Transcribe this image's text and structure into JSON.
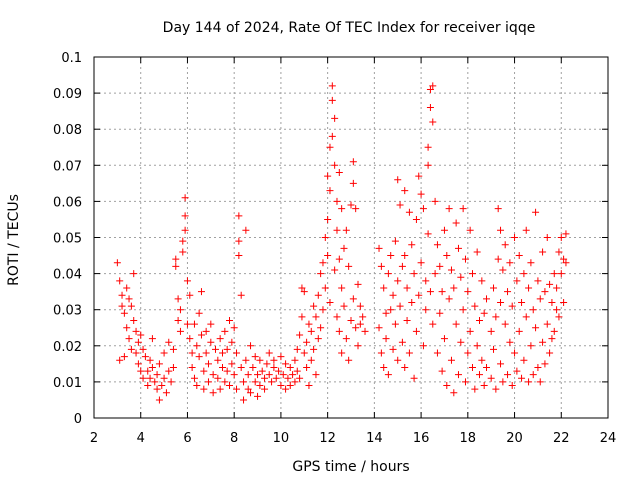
{
  "chart_data": {
    "type": "scatter",
    "title": "Day 144 of 2024, Rate Of TEC Index for receiver iqqe",
    "xlabel": "GPS time / hours",
    "ylabel": "ROTI / TECUs",
    "xlim": [
      2,
      24
    ],
    "ylim": [
      0,
      0.1
    ],
    "xticks": [
      "2",
      "4",
      "6",
      "8",
      "10",
      "12",
      "14",
      "16",
      "18",
      "20",
      "22",
      "24"
    ],
    "yticks": [
      "0",
      "0.01",
      "0.02",
      "0.03",
      "0.04",
      "0.05",
      "0.06",
      "0.07",
      "0.08",
      "0.09",
      "0.1"
    ],
    "grid": true,
    "marker": "plus",
    "series_color": "#ff0000",
    "points": [
      [
        3.0,
        0.043
      ],
      [
        3.1,
        0.038
      ],
      [
        3.1,
        0.016
      ],
      [
        3.2,
        0.034
      ],
      [
        3.2,
        0.031
      ],
      [
        3.3,
        0.029
      ],
      [
        3.3,
        0.017
      ],
      [
        3.4,
        0.036
      ],
      [
        3.4,
        0.025
      ],
      [
        3.5,
        0.033
      ],
      [
        3.5,
        0.022
      ],
      [
        3.6,
        0.031
      ],
      [
        3.6,
        0.019
      ],
      [
        3.7,
        0.04
      ],
      [
        3.7,
        0.027
      ],
      [
        3.8,
        0.024
      ],
      [
        3.8,
        0.018
      ],
      [
        3.9,
        0.021
      ],
      [
        3.9,
        0.015
      ],
      [
        4.0,
        0.023
      ],
      [
        4.0,
        0.013
      ],
      [
        4.1,
        0.019
      ],
      [
        4.1,
        0.011
      ],
      [
        4.2,
        0.017
      ],
      [
        4.3,
        0.013
      ],
      [
        4.3,
        0.009
      ],
      [
        4.4,
        0.016
      ],
      [
        4.4,
        0.011
      ],
      [
        4.5,
        0.022
      ],
      [
        4.5,
        0.014
      ],
      [
        4.6,
        0.01
      ],
      [
        4.7,
        0.012
      ],
      [
        4.7,
        0.008
      ],
      [
        4.8,
        0.005
      ],
      [
        4.8,
        0.015
      ],
      [
        4.9,
        0.009
      ],
      [
        5.0,
        0.011
      ],
      [
        5.0,
        0.018
      ],
      [
        5.1,
        0.007
      ],
      [
        5.2,
        0.013
      ],
      [
        5.2,
        0.021
      ],
      [
        5.3,
        0.01
      ],
      [
        5.4,
        0.014
      ],
      [
        5.4,
        0.019
      ],
      [
        5.5,
        0.044
      ],
      [
        5.5,
        0.042
      ],
      [
        5.6,
        0.033
      ],
      [
        5.6,
        0.027
      ],
      [
        5.7,
        0.024
      ],
      [
        5.7,
        0.03
      ],
      [
        5.8,
        0.046
      ],
      [
        5.8,
        0.049
      ],
      [
        5.9,
        0.056
      ],
      [
        5.9,
        0.061
      ],
      [
        5.9,
        0.052
      ],
      [
        6.0,
        0.038
      ],
      [
        6.0,
        0.026
      ],
      [
        6.1,
        0.034
      ],
      [
        6.1,
        0.022
      ],
      [
        6.2,
        0.018
      ],
      [
        6.2,
        0.014
      ],
      [
        6.3,
        0.011
      ],
      [
        6.3,
        0.026
      ],
      [
        6.4,
        0.02
      ],
      [
        6.4,
        0.009
      ],
      [
        6.5,
        0.029
      ],
      [
        6.5,
        0.017
      ],
      [
        6.6,
        0.035
      ],
      [
        6.6,
        0.023
      ],
      [
        6.7,
        0.013
      ],
      [
        6.7,
        0.008
      ],
      [
        6.8,
        0.024
      ],
      [
        6.8,
        0.018
      ],
      [
        6.9,
        0.015
      ],
      [
        6.9,
        0.01
      ],
      [
        7.0,
        0.021
      ],
      [
        7.0,
        0.026
      ],
      [
        7.1,
        0.012
      ],
      [
        7.1,
        0.007
      ],
      [
        7.2,
        0.019
      ],
      [
        7.3,
        0.016
      ],
      [
        7.3,
        0.011
      ],
      [
        7.4,
        0.022
      ],
      [
        7.4,
        0.008
      ],
      [
        7.5,
        0.014
      ],
      [
        7.5,
        0.018
      ],
      [
        7.6,
        0.01
      ],
      [
        7.6,
        0.024
      ],
      [
        7.7,
        0.013
      ],
      [
        7.7,
        0.019
      ],
      [
        7.8,
        0.009
      ],
      [
        7.8,
        0.027
      ],
      [
        7.9,
        0.015
      ],
      [
        7.9,
        0.021
      ],
      [
        8.0,
        0.012
      ],
      [
        8.0,
        0.025
      ],
      [
        8.1,
        0.018
      ],
      [
        8.1,
        0.008
      ],
      [
        8.2,
        0.056
      ],
      [
        8.2,
        0.049
      ],
      [
        8.2,
        0.045
      ],
      [
        8.3,
        0.034
      ],
      [
        8.3,
        0.014
      ],
      [
        8.4,
        0.005
      ],
      [
        8.4,
        0.01
      ],
      [
        8.5,
        0.052
      ],
      [
        8.5,
        0.016
      ],
      [
        8.6,
        0.008
      ],
      [
        8.6,
        0.012
      ],
      [
        8.7,
        0.02
      ],
      [
        8.7,
        0.007
      ],
      [
        8.8,
        0.014
      ],
      [
        8.9,
        0.01
      ],
      [
        8.9,
        0.017
      ],
      [
        9.0,
        0.006
      ],
      [
        9.0,
        0.012
      ],
      [
        9.1,
        0.009
      ],
      [
        9.1,
        0.016
      ],
      [
        9.2,
        0.013
      ],
      [
        9.3,
        0.011
      ],
      [
        9.3,
        0.008
      ],
      [
        9.4,
        0.015
      ],
      [
        9.5,
        0.012
      ],
      [
        9.5,
        0.018
      ],
      [
        9.6,
        0.01
      ],
      [
        9.7,
        0.014
      ],
      [
        9.7,
        0.016
      ],
      [
        9.8,
        0.011
      ],
      [
        9.9,
        0.013
      ],
      [
        10.0,
        0.017
      ],
      [
        10.0,
        0.009
      ],
      [
        10.1,
        0.012
      ],
      [
        10.2,
        0.015
      ],
      [
        10.2,
        0.008
      ],
      [
        10.3,
        0.011
      ],
      [
        10.4,
        0.014
      ],
      [
        10.4,
        0.009
      ],
      [
        10.5,
        0.012
      ],
      [
        10.6,
        0.016
      ],
      [
        10.6,
        0.01
      ],
      [
        10.7,
        0.019
      ],
      [
        10.7,
        0.013
      ],
      [
        10.8,
        0.023
      ],
      [
        10.8,
        0.011
      ],
      [
        10.9,
        0.036
      ],
      [
        10.9,
        0.028
      ],
      [
        11.0,
        0.035
      ],
      [
        11.0,
        0.018
      ],
      [
        11.1,
        0.021
      ],
      [
        11.1,
        0.014
      ],
      [
        11.2,
        0.026
      ],
      [
        11.2,
        0.009
      ],
      [
        11.3,
        0.024
      ],
      [
        11.3,
        0.016
      ],
      [
        11.4,
        0.031
      ],
      [
        11.4,
        0.019
      ],
      [
        11.5,
        0.028
      ],
      [
        11.5,
        0.012
      ],
      [
        11.6,
        0.034
      ],
      [
        11.6,
        0.022
      ],
      [
        11.7,
        0.04
      ],
      [
        11.7,
        0.025
      ],
      [
        11.8,
        0.043
      ],
      [
        11.8,
        0.03
      ],
      [
        11.9,
        0.05
      ],
      [
        11.9,
        0.036
      ],
      [
        12.0,
        0.067
      ],
      [
        12.0,
        0.055
      ],
      [
        12.0,
        0.045
      ],
      [
        12.1,
        0.075
      ],
      [
        12.1,
        0.063
      ],
      [
        12.1,
        0.032
      ],
      [
        12.2,
        0.092
      ],
      [
        12.2,
        0.088
      ],
      [
        12.2,
        0.078
      ],
      [
        12.3,
        0.083
      ],
      [
        12.3,
        0.07
      ],
      [
        12.3,
        0.041
      ],
      [
        12.4,
        0.06
      ],
      [
        12.4,
        0.052
      ],
      [
        12.4,
        0.028
      ],
      [
        12.5,
        0.068
      ],
      [
        12.5,
        0.044
      ],
      [
        12.5,
        0.024
      ],
      [
        12.6,
        0.058
      ],
      [
        12.6,
        0.036
      ],
      [
        12.6,
        0.018
      ],
      [
        12.7,
        0.047
      ],
      [
        12.7,
        0.031
      ],
      [
        12.8,
        0.052
      ],
      [
        12.8,
        0.022
      ],
      [
        12.9,
        0.042
      ],
      [
        12.9,
        0.016
      ],
      [
        13.0,
        0.059
      ],
      [
        13.0,
        0.027
      ],
      [
        13.1,
        0.071
      ],
      [
        13.1,
        0.065
      ],
      [
        13.1,
        0.033
      ],
      [
        13.2,
        0.058
      ],
      [
        13.2,
        0.025
      ],
      [
        13.3,
        0.037
      ],
      [
        13.3,
        0.02
      ],
      [
        13.4,
        0.031
      ],
      [
        13.4,
        0.026
      ],
      [
        13.5,
        0.028
      ],
      [
        13.6,
        0.024
      ],
      [
        14.2,
        0.047
      ],
      [
        14.2,
        0.025
      ],
      [
        14.3,
        0.042
      ],
      [
        14.3,
        0.018
      ],
      [
        14.4,
        0.036
      ],
      [
        14.4,
        0.014
      ],
      [
        14.5,
        0.029
      ],
      [
        14.5,
        0.022
      ],
      [
        14.6,
        0.04
      ],
      [
        14.6,
        0.012
      ],
      [
        14.7,
        0.045
      ],
      [
        14.7,
        0.03
      ],
      [
        14.8,
        0.034
      ],
      [
        14.8,
        0.019
      ],
      [
        14.9,
        0.049
      ],
      [
        14.9,
        0.026
      ],
      [
        15.0,
        0.066
      ],
      [
        15.0,
        0.038
      ],
      [
        15.0,
        0.016
      ],
      [
        15.1,
        0.059
      ],
      [
        15.1,
        0.031
      ],
      [
        15.2,
        0.042
      ],
      [
        15.2,
        0.021
      ],
      [
        15.3,
        0.063
      ],
      [
        15.3,
        0.045
      ],
      [
        15.3,
        0.014
      ],
      [
        15.4,
        0.036
      ],
      [
        15.4,
        0.027
      ],
      [
        15.5,
        0.057
      ],
      [
        15.5,
        0.018
      ],
      [
        15.6,
        0.048
      ],
      [
        15.6,
        0.032
      ],
      [
        15.7,
        0.04
      ],
      [
        15.7,
        0.011
      ],
      [
        15.8,
        0.055
      ],
      [
        15.8,
        0.024
      ],
      [
        15.9,
        0.067
      ],
      [
        15.9,
        0.034
      ],
      [
        16.0,
        0.062
      ],
      [
        16.0,
        0.043
      ],
      [
        16.1,
        0.058
      ],
      [
        16.1,
        0.02
      ],
      [
        16.2,
        0.038
      ],
      [
        16.2,
        0.03
      ],
      [
        16.3,
        0.075
      ],
      [
        16.3,
        0.07
      ],
      [
        16.3,
        0.051
      ],
      [
        16.4,
        0.091
      ],
      [
        16.4,
        0.086
      ],
      [
        16.4,
        0.035
      ],
      [
        16.5,
        0.092
      ],
      [
        16.5,
        0.082
      ],
      [
        16.5,
        0.026
      ],
      [
        16.6,
        0.06
      ],
      [
        16.6,
        0.04
      ],
      [
        16.7,
        0.048
      ],
      [
        16.7,
        0.018
      ],
      [
        16.8,
        0.042
      ],
      [
        16.8,
        0.029
      ],
      [
        16.9,
        0.035
      ],
      [
        16.9,
        0.013
      ],
      [
        17.0,
        0.052
      ],
      [
        17.0,
        0.022
      ],
      [
        17.1,
        0.045
      ],
      [
        17.1,
        0.009
      ],
      [
        17.2,
        0.058
      ],
      [
        17.2,
        0.033
      ],
      [
        17.3,
        0.041
      ],
      [
        17.3,
        0.016
      ],
      [
        17.4,
        0.036
      ],
      [
        17.4,
        0.007
      ],
      [
        17.5,
        0.054
      ],
      [
        17.5,
        0.026
      ],
      [
        17.6,
        0.047
      ],
      [
        17.6,
        0.012
      ],
      [
        17.7,
        0.039
      ],
      [
        17.7,
        0.021
      ],
      [
        17.8,
        0.058
      ],
      [
        17.8,
        0.03
      ],
      [
        17.9,
        0.044
      ],
      [
        17.9,
        0.01
      ],
      [
        18.0,
        0.035
      ],
      [
        18.0,
        0.018
      ],
      [
        18.1,
        0.052
      ],
      [
        18.1,
        0.024
      ],
      [
        18.2,
        0.04
      ],
      [
        18.2,
        0.014
      ],
      [
        18.3,
        0.031
      ],
      [
        18.3,
        0.008
      ],
      [
        18.4,
        0.046
      ],
      [
        18.4,
        0.02
      ],
      [
        18.5,
        0.027
      ],
      [
        18.5,
        0.012
      ],
      [
        18.6,
        0.038
      ],
      [
        18.6,
        0.016
      ],
      [
        18.7,
        0.029
      ],
      [
        18.7,
        0.009
      ],
      [
        18.8,
        0.033
      ],
      [
        18.8,
        0.014
      ],
      [
        19.0,
        0.024
      ],
      [
        19.0,
        0.011
      ],
      [
        19.1,
        0.036
      ],
      [
        19.1,
        0.019
      ],
      [
        19.2,
        0.028
      ],
      [
        19.2,
        0.008
      ],
      [
        19.3,
        0.058
      ],
      [
        19.3,
        0.044
      ],
      [
        19.4,
        0.052
      ],
      [
        19.4,
        0.032
      ],
      [
        19.4,
        0.015
      ],
      [
        19.5,
        0.041
      ],
      [
        19.5,
        0.01
      ],
      [
        19.6,
        0.048
      ],
      [
        19.6,
        0.026
      ],
      [
        19.7,
        0.035
      ],
      [
        19.7,
        0.012
      ],
      [
        19.8,
        0.043
      ],
      [
        19.8,
        0.021
      ],
      [
        19.9,
        0.031
      ],
      [
        19.9,
        0.009
      ],
      [
        20.0,
        0.05
      ],
      [
        20.0,
        0.018
      ],
      [
        20.1,
        0.038
      ],
      [
        20.1,
        0.013
      ],
      [
        20.2,
        0.045
      ],
      [
        20.2,
        0.024
      ],
      [
        20.3,
        0.032
      ],
      [
        20.3,
        0.011
      ],
      [
        20.4,
        0.04
      ],
      [
        20.4,
        0.016
      ],
      [
        20.5,
        0.052
      ],
      [
        20.5,
        0.028
      ],
      [
        20.6,
        0.036
      ],
      [
        20.6,
        0.01
      ],
      [
        20.7,
        0.043
      ],
      [
        20.7,
        0.02
      ],
      [
        20.8,
        0.03
      ],
      [
        20.8,
        0.012
      ],
      [
        20.9,
        0.057
      ],
      [
        20.9,
        0.025
      ],
      [
        21.0,
        0.038
      ],
      [
        21.0,
        0.014
      ],
      [
        21.1,
        0.033
      ],
      [
        21.1,
        0.01
      ],
      [
        21.2,
        0.046
      ],
      [
        21.2,
        0.021
      ],
      [
        21.3,
        0.035
      ],
      [
        21.3,
        0.015
      ],
      [
        21.4,
        0.05
      ],
      [
        21.4,
        0.026
      ],
      [
        21.5,
        0.037
      ],
      [
        21.5,
        0.018
      ],
      [
        21.6,
        0.032
      ],
      [
        21.6,
        0.022
      ],
      [
        21.7,
        0.04
      ],
      [
        21.7,
        0.024
      ],
      [
        21.8,
        0.036
      ],
      [
        21.8,
        0.03
      ],
      [
        21.9,
        0.046
      ],
      [
        21.9,
        0.028
      ],
      [
        22.0,
        0.05
      ],
      [
        22.0,
        0.04
      ],
      [
        22.1,
        0.044
      ],
      [
        22.1,
        0.032
      ],
      [
        22.2,
        0.051
      ],
      [
        22.2,
        0.043
      ]
    ]
  }
}
